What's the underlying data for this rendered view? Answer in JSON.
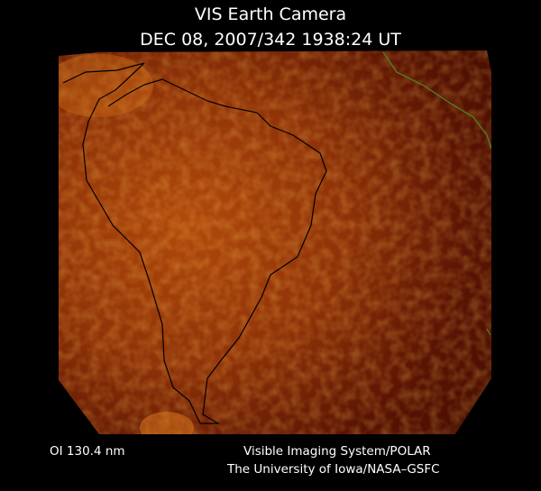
{
  "header": {
    "title": "VIS Earth Camera",
    "timestamp": "DEC 08, 2007/342 1938:24 UT"
  },
  "footer": {
    "filter": "OI  130.4 nm",
    "instrument": "Visible Imaging System/POLAR",
    "credit": "The University of Iowa/NASA–GSFC"
  }
}
